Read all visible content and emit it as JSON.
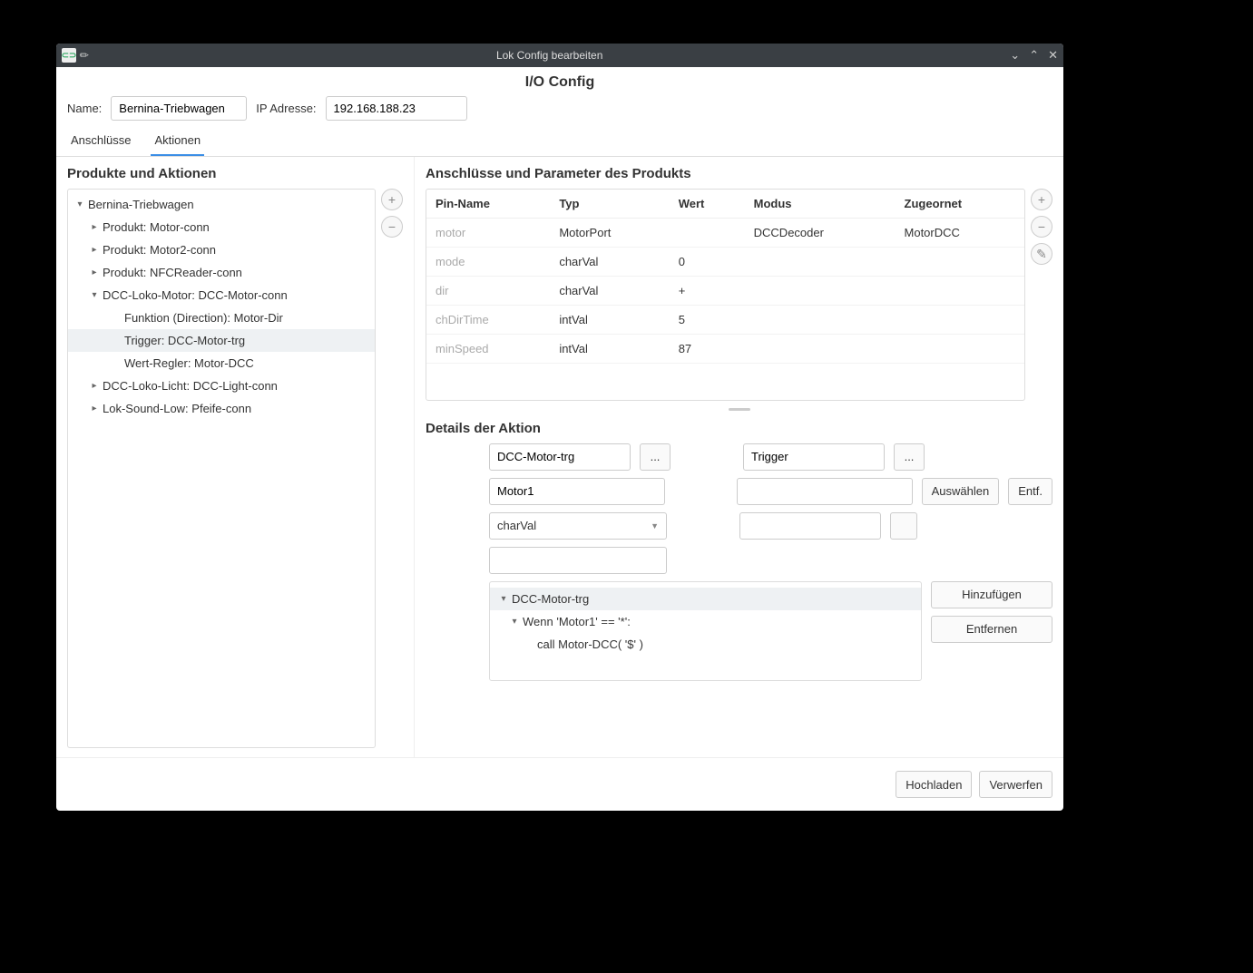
{
  "titlebar": {
    "title": "Lok Config bearbeiten"
  },
  "page": {
    "title": "I/O Config"
  },
  "header": {
    "name_label": "Name:",
    "name_value": "Bernina-Triebwagen",
    "ip_label": "IP Adresse:",
    "ip_value": "192.168.188.23"
  },
  "tabs": {
    "connections": "Anschlüsse",
    "actions": "Aktionen"
  },
  "left": {
    "heading": "Produkte und Aktionen",
    "tree": [
      {
        "label": "Bernina-Triebwagen",
        "indent": 0,
        "caret": "down"
      },
      {
        "label": "Produkt: Motor-conn",
        "indent": 1,
        "caret": "right"
      },
      {
        "label": "Produkt: Motor2-conn",
        "indent": 1,
        "caret": "right"
      },
      {
        "label": "Produkt: NFCReader-conn",
        "indent": 1,
        "caret": "right"
      },
      {
        "label": "DCC-Loko-Motor: DCC-Motor-conn",
        "indent": 1,
        "caret": "down"
      },
      {
        "label": "Funktion (Direction): Motor-Dir",
        "indent": 2,
        "caret": ""
      },
      {
        "label": "Trigger: DCC-Motor-trg",
        "indent": 2,
        "caret": "",
        "selected": true
      },
      {
        "label": "Wert-Regler: Motor-DCC",
        "indent": 2,
        "caret": ""
      },
      {
        "label": "DCC-Loko-Licht: DCC-Light-conn",
        "indent": 1,
        "caret": "right"
      },
      {
        "label": "Lok-Sound-Low: Pfeife-conn",
        "indent": 1,
        "caret": "right"
      }
    ]
  },
  "params": {
    "heading": "Anschlüsse und Parameter des Produkts",
    "columns": [
      "Pin-Name",
      "Typ",
      "Wert",
      "Modus",
      "Zugeornet"
    ],
    "rows": [
      [
        "motor",
        "MotorPort",
        "",
        "DCCDecoder",
        "MotorDCC"
      ],
      [
        "mode",
        "charVal",
        "0",
        "",
        ""
      ],
      [
        "dir",
        "charVal",
        "+",
        "",
        ""
      ],
      [
        "chDirTime",
        "intVal",
        "5",
        "",
        ""
      ],
      [
        "minSpeed",
        "intVal",
        "87",
        "",
        ""
      ]
    ]
  },
  "details": {
    "heading": "Details der Aktion",
    "name_value": "DCC-Motor-trg",
    "type_value": "Trigger",
    "motor_value": "Motor1",
    "select_btn": "Auswählen",
    "remove_btn": "Entf.",
    "valtype": "charVal",
    "cond_header": "DCC-Motor-trg",
    "cond_when": "Wenn 'Motor1' == '*':",
    "cond_call": "call Motor-DCC( '$' )",
    "add_btn": "Hinzufügen",
    "del_btn": "Entfernen"
  },
  "footer": {
    "upload": "Hochladen",
    "discard": "Verwerfen"
  }
}
